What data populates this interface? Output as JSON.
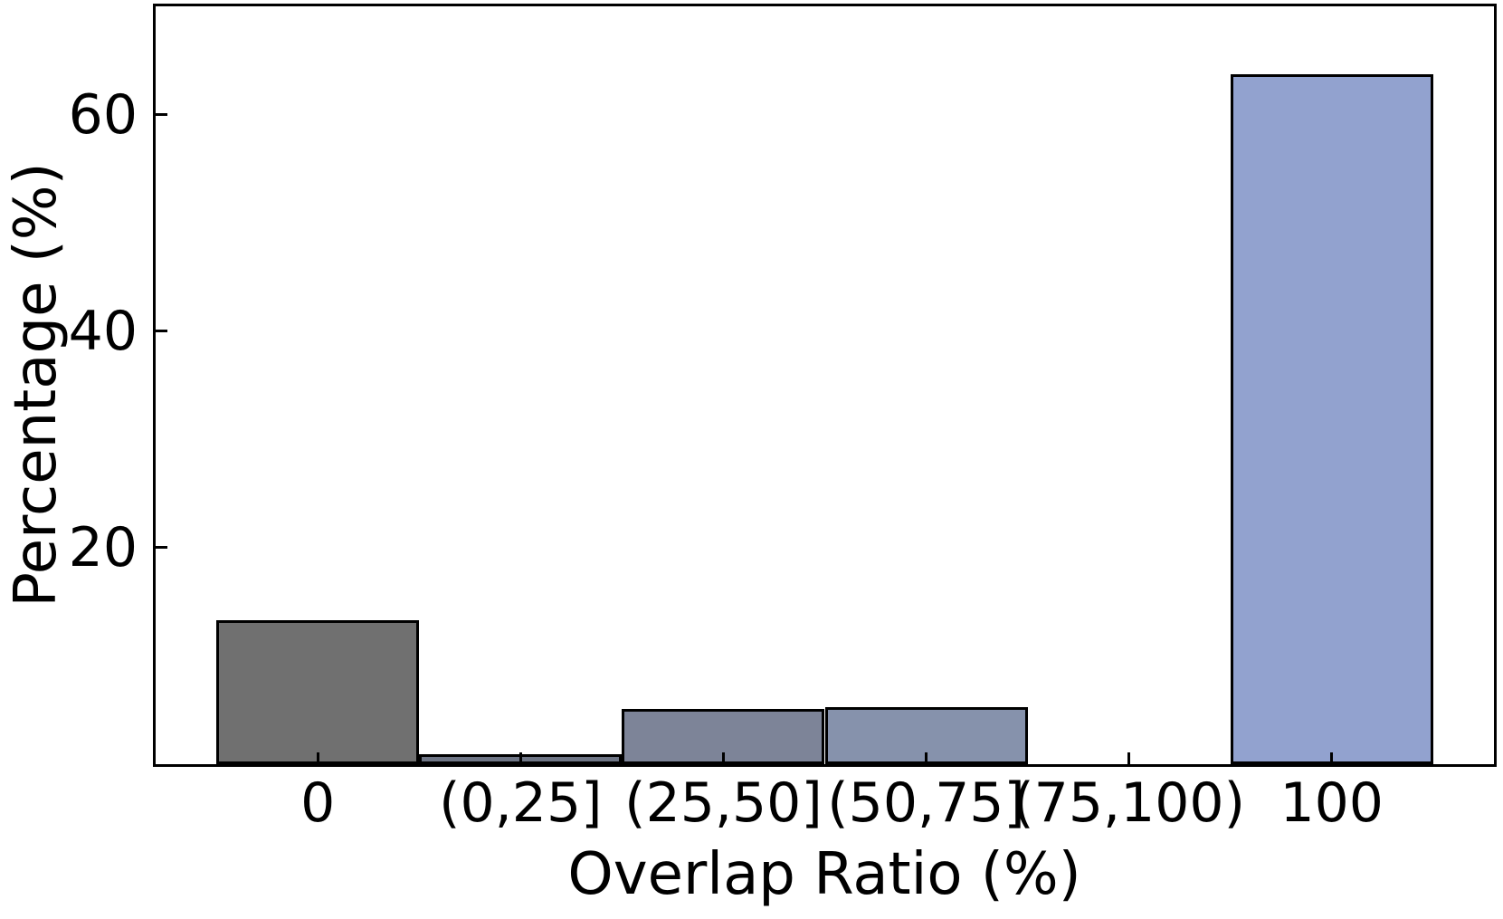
{
  "chart_data": {
    "type": "bar",
    "title": "",
    "xlabel": "Overlap Ratio (%)",
    "ylabel": "Percentage (%)",
    "categories": [
      "0",
      "(0,25]",
      "(25,50]",
      "(50,75]",
      "(75,100)",
      "100"
    ],
    "values": [
      13.3,
      0.9,
      5.1,
      5.3,
      0.0,
      63.7
    ],
    "bar_colors": [
      "#707070",
      "#6e7585",
      "#7d8498",
      "#8692ac",
      "#8c9abe",
      "#92a2cf"
    ],
    "bar_edge_color": "#000000",
    "ylim": [
      0,
      70
    ],
    "yticks": [
      20,
      40,
      60
    ],
    "xlim_units": [
      -0.8,
      5.8
    ],
    "bar_width_units": 1.0,
    "grid": false,
    "legend": null,
    "tick_direction": "in",
    "axis_color": "#000000",
    "background_color": "#ffffff"
  }
}
